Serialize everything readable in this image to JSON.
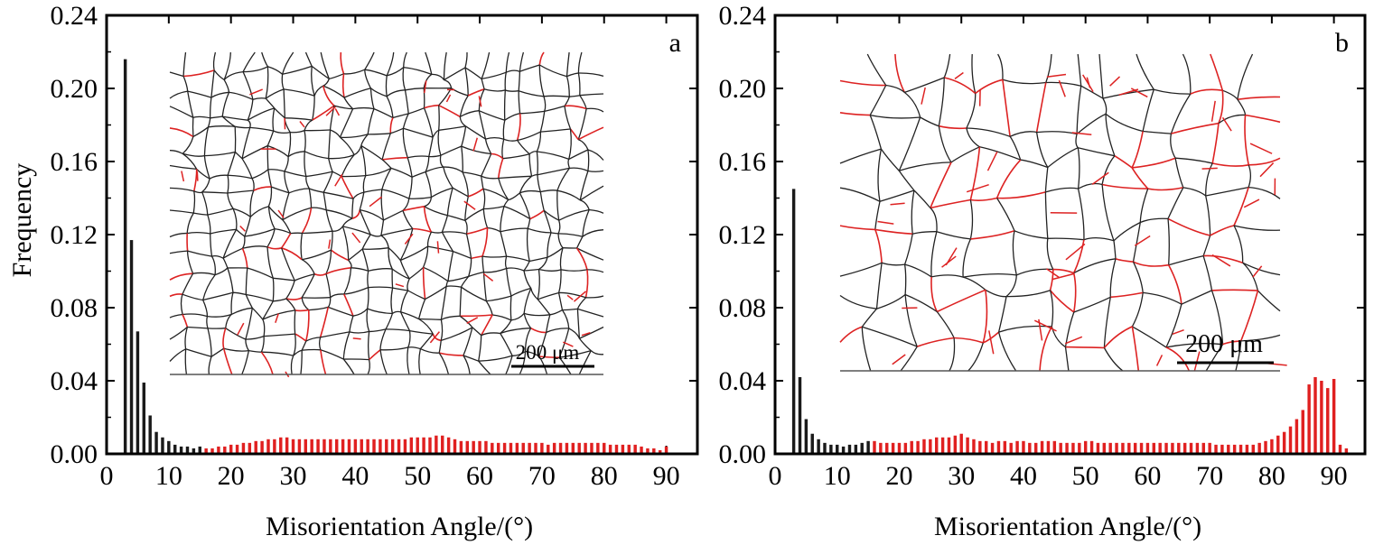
{
  "chart_data": [
    {
      "type": "bar",
      "panel_label": "a",
      "xlabel": "Misorientation Angle/(°)",
      "ylabel": "Frequency",
      "xlim": [
        0,
        95
      ],
      "ylim": [
        0,
        0.24
      ],
      "xticks": [
        0,
        10,
        20,
        30,
        40,
        50,
        60,
        70,
        80,
        90
      ],
      "yticks": [
        "0.00",
        "0.04",
        "0.08",
        "0.12",
        "0.16",
        "0.20",
        "0.24"
      ],
      "bar_width": 0.5,
      "bars": [
        {
          "x": 3,
          "y": 0.216
        },
        {
          "x": 4,
          "y": 0.117
        },
        {
          "x": 5,
          "y": 0.067
        },
        {
          "x": 6,
          "y": 0.039
        },
        {
          "x": 7,
          "y": 0.021
        },
        {
          "x": 8,
          "y": 0.012
        },
        {
          "x": 9,
          "y": 0.009
        },
        {
          "x": 10,
          "y": 0.007
        },
        {
          "x": 11,
          "y": 0.005
        },
        {
          "x": 12,
          "y": 0.004
        },
        {
          "x": 13,
          "y": 0.004
        },
        {
          "x": 14,
          "y": 0.003
        },
        {
          "x": 15,
          "y": 0.004
        },
        {
          "x": 16,
          "y": 0.003
        },
        {
          "x": 17,
          "y": 0.003
        },
        {
          "x": 18,
          "y": 0.004
        },
        {
          "x": 19,
          "y": 0.004
        },
        {
          "x": 20,
          "y": 0.005
        },
        {
          "x": 21,
          "y": 0.005
        },
        {
          "x": 22,
          "y": 0.006
        },
        {
          "x": 23,
          "y": 0.006
        },
        {
          "x": 24,
          "y": 0.007
        },
        {
          "x": 25,
          "y": 0.007
        },
        {
          "x": 26,
          "y": 0.008
        },
        {
          "x": 27,
          "y": 0.008
        },
        {
          "x": 28,
          "y": 0.009
        },
        {
          "x": 29,
          "y": 0.009
        },
        {
          "x": 30,
          "y": 0.008
        },
        {
          "x": 31,
          "y": 0.008
        },
        {
          "x": 32,
          "y": 0.008
        },
        {
          "x": 33,
          "y": 0.008
        },
        {
          "x": 34,
          "y": 0.008
        },
        {
          "x": 35,
          "y": 0.008
        },
        {
          "x": 36,
          "y": 0.008
        },
        {
          "x": 37,
          "y": 0.008
        },
        {
          "x": 38,
          "y": 0.008
        },
        {
          "x": 39,
          "y": 0.008
        },
        {
          "x": 40,
          "y": 0.008
        },
        {
          "x": 41,
          "y": 0.008
        },
        {
          "x": 42,
          "y": 0.008
        },
        {
          "x": 43,
          "y": 0.008
        },
        {
          "x": 44,
          "y": 0.008
        },
        {
          "x": 45,
          "y": 0.008
        },
        {
          "x": 46,
          "y": 0.008
        },
        {
          "x": 47,
          "y": 0.008
        },
        {
          "x": 48,
          "y": 0.008
        },
        {
          "x": 49,
          "y": 0.009
        },
        {
          "x": 50,
          "y": 0.009
        },
        {
          "x": 51,
          "y": 0.009
        },
        {
          "x": 52,
          "y": 0.009
        },
        {
          "x": 53,
          "y": 0.01
        },
        {
          "x": 54,
          "y": 0.01
        },
        {
          "x": 55,
          "y": 0.009
        },
        {
          "x": 56,
          "y": 0.008
        },
        {
          "x": 57,
          "y": 0.007
        },
        {
          "x": 58,
          "y": 0.007
        },
        {
          "x": 59,
          "y": 0.007
        },
        {
          "x": 60,
          "y": 0.007
        },
        {
          "x": 61,
          "y": 0.007
        },
        {
          "x": 62,
          "y": 0.006
        },
        {
          "x": 63,
          "y": 0.006
        },
        {
          "x": 64,
          "y": 0.006
        },
        {
          "x": 65,
          "y": 0.006
        },
        {
          "x": 66,
          "y": 0.006
        },
        {
          "x": 67,
          "y": 0.006
        },
        {
          "x": 68,
          "y": 0.006
        },
        {
          "x": 69,
          "y": 0.006
        },
        {
          "x": 70,
          "y": 0.006
        },
        {
          "x": 71,
          "y": 0.005
        },
        {
          "x": 72,
          "y": 0.006
        },
        {
          "x": 73,
          "y": 0.006
        },
        {
          "x": 74,
          "y": 0.006
        },
        {
          "x": 75,
          "y": 0.006
        },
        {
          "x": 76,
          "y": 0.006
        },
        {
          "x": 77,
          "y": 0.006
        },
        {
          "x": 78,
          "y": 0.006
        },
        {
          "x": 79,
          "y": 0.006
        },
        {
          "x": 80,
          "y": 0.006
        },
        {
          "x": 81,
          "y": 0.005
        },
        {
          "x": 82,
          "y": 0.005
        },
        {
          "x": 83,
          "y": 0.005
        },
        {
          "x": 84,
          "y": 0.005
        },
        {
          "x": 85,
          "y": 0.005
        },
        {
          "x": 86,
          "y": 0.004
        },
        {
          "x": 87,
          "y": 0.003
        },
        {
          "x": 88,
          "y": 0.003
        },
        {
          "x": 89,
          "y": 0.002
        },
        {
          "x": 90,
          "y": 0.004
        }
      ],
      "color_low_angle": "#1a1a1a",
      "color_high_angle": "#e02020",
      "color_threshold_deg": 15,
      "inset": {
        "kind": "grain-boundary-map",
        "scale_bar_label": "200 μm",
        "boundary_color": "#222222",
        "twin_color": "#dd2222",
        "grain_count_hint": "fine",
        "twin_fraction": 0.08
      }
    },
    {
      "type": "bar",
      "panel_label": "b",
      "xlabel": "Misorientation Angle/(°)",
      "ylabel": "",
      "xlim": [
        0,
        95
      ],
      "ylim": [
        0,
        0.24
      ],
      "xticks": [
        0,
        10,
        20,
        30,
        40,
        50,
        60,
        70,
        80,
        90
      ],
      "yticks": [
        "0.00",
        "0.04",
        "0.08",
        "0.12",
        "0.16",
        "0.20",
        "0.24"
      ],
      "bar_width": 0.5,
      "bars": [
        {
          "x": 3,
          "y": 0.145
        },
        {
          "x": 4,
          "y": 0.042
        },
        {
          "x": 5,
          "y": 0.019
        },
        {
          "x": 6,
          "y": 0.011
        },
        {
          "x": 7,
          "y": 0.008
        },
        {
          "x": 8,
          "y": 0.006
        },
        {
          "x": 9,
          "y": 0.005
        },
        {
          "x": 10,
          "y": 0.005
        },
        {
          "x": 11,
          "y": 0.004
        },
        {
          "x": 12,
          "y": 0.005
        },
        {
          "x": 13,
          "y": 0.005
        },
        {
          "x": 14,
          "y": 0.006
        },
        {
          "x": 15,
          "y": 0.007
        },
        {
          "x": 16,
          "y": 0.007
        },
        {
          "x": 17,
          "y": 0.006
        },
        {
          "x": 18,
          "y": 0.006
        },
        {
          "x": 19,
          "y": 0.006
        },
        {
          "x": 20,
          "y": 0.006
        },
        {
          "x": 21,
          "y": 0.006
        },
        {
          "x": 22,
          "y": 0.007
        },
        {
          "x": 23,
          "y": 0.007
        },
        {
          "x": 24,
          "y": 0.008
        },
        {
          "x": 25,
          "y": 0.008
        },
        {
          "x": 26,
          "y": 0.009
        },
        {
          "x": 27,
          "y": 0.009
        },
        {
          "x": 28,
          "y": 0.009
        },
        {
          "x": 29,
          "y": 0.01
        },
        {
          "x": 30,
          "y": 0.011
        },
        {
          "x": 31,
          "y": 0.009
        },
        {
          "x": 32,
          "y": 0.008
        },
        {
          "x": 33,
          "y": 0.007
        },
        {
          "x": 34,
          "y": 0.007
        },
        {
          "x": 35,
          "y": 0.006
        },
        {
          "x": 36,
          "y": 0.007
        },
        {
          "x": 37,
          "y": 0.007
        },
        {
          "x": 38,
          "y": 0.006
        },
        {
          "x": 39,
          "y": 0.007
        },
        {
          "x": 40,
          "y": 0.007
        },
        {
          "x": 41,
          "y": 0.006
        },
        {
          "x": 42,
          "y": 0.006
        },
        {
          "x": 43,
          "y": 0.007
        },
        {
          "x": 44,
          "y": 0.007
        },
        {
          "x": 45,
          "y": 0.007
        },
        {
          "x": 46,
          "y": 0.006
        },
        {
          "x": 47,
          "y": 0.006
        },
        {
          "x": 48,
          "y": 0.006
        },
        {
          "x": 49,
          "y": 0.006
        },
        {
          "x": 50,
          "y": 0.007
        },
        {
          "x": 51,
          "y": 0.007
        },
        {
          "x": 52,
          "y": 0.006
        },
        {
          "x": 53,
          "y": 0.006
        },
        {
          "x": 54,
          "y": 0.006
        },
        {
          "x": 55,
          "y": 0.006
        },
        {
          "x": 56,
          "y": 0.006
        },
        {
          "x": 57,
          "y": 0.006
        },
        {
          "x": 58,
          "y": 0.006
        },
        {
          "x": 59,
          "y": 0.006
        },
        {
          "x": 60,
          "y": 0.006
        },
        {
          "x": 61,
          "y": 0.006
        },
        {
          "x": 62,
          "y": 0.006
        },
        {
          "x": 63,
          "y": 0.006
        },
        {
          "x": 64,
          "y": 0.006
        },
        {
          "x": 65,
          "y": 0.006
        },
        {
          "x": 66,
          "y": 0.006
        },
        {
          "x": 67,
          "y": 0.006
        },
        {
          "x": 68,
          "y": 0.006
        },
        {
          "x": 69,
          "y": 0.006
        },
        {
          "x": 70,
          "y": 0.006
        },
        {
          "x": 71,
          "y": 0.005
        },
        {
          "x": 72,
          "y": 0.005
        },
        {
          "x": 73,
          "y": 0.005
        },
        {
          "x": 74,
          "y": 0.005
        },
        {
          "x": 75,
          "y": 0.005
        },
        {
          "x": 76,
          "y": 0.005
        },
        {
          "x": 77,
          "y": 0.005
        },
        {
          "x": 78,
          "y": 0.006
        },
        {
          "x": 79,
          "y": 0.007
        },
        {
          "x": 80,
          "y": 0.008
        },
        {
          "x": 81,
          "y": 0.01
        },
        {
          "x": 82,
          "y": 0.012
        },
        {
          "x": 83,
          "y": 0.015
        },
        {
          "x": 84,
          "y": 0.019
        },
        {
          "x": 85,
          "y": 0.024
        },
        {
          "x": 86,
          "y": 0.038
        },
        {
          "x": 87,
          "y": 0.042
        },
        {
          "x": 88,
          "y": 0.04
        },
        {
          "x": 89,
          "y": 0.036
        },
        {
          "x": 90,
          "y": 0.041
        },
        {
          "x": 91,
          "y": 0.005
        },
        {
          "x": 92,
          "y": 0.003
        }
      ],
      "color_low_angle": "#1a1a1a",
      "color_high_angle": "#e02020",
      "color_threshold_deg": 15,
      "inset": {
        "kind": "grain-boundary-map",
        "scale_bar_label": "200 μm",
        "boundary_color": "#222222",
        "twin_color": "#dd2222",
        "grain_count_hint": "coarse",
        "twin_fraction": 0.3
      }
    }
  ]
}
